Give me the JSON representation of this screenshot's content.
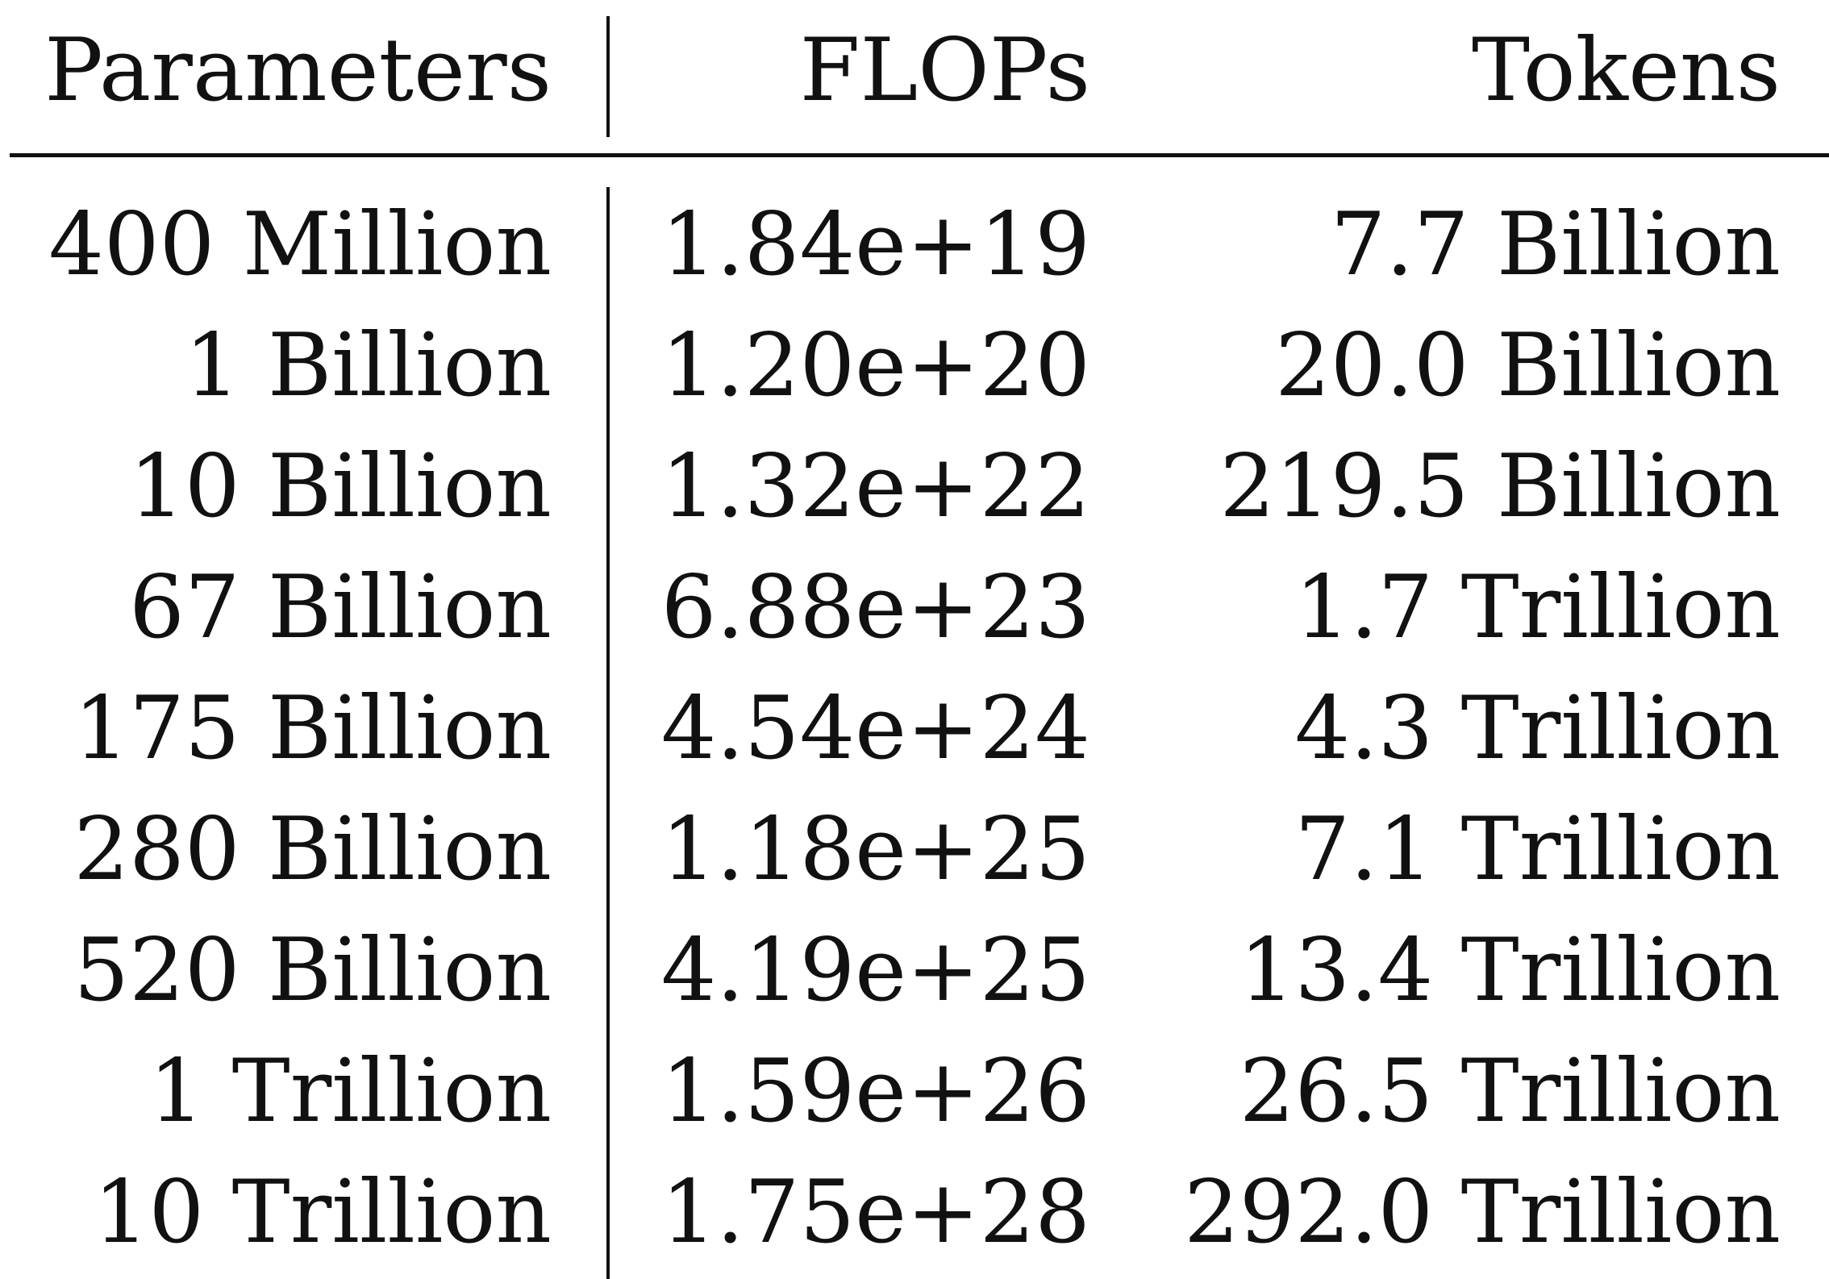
{
  "table": {
    "headers": {
      "parameters": "Parameters",
      "flops": "FLOPs",
      "tokens": "Tokens"
    },
    "rows": [
      {
        "parameters": "400 Million",
        "flops": "1.84e+19",
        "tokens": "7.7 Billion"
      },
      {
        "parameters": "1 Billion",
        "flops": "1.20e+20",
        "tokens": "20.0 Billion"
      },
      {
        "parameters": "10 Billion",
        "flops": "1.32e+22",
        "tokens": "219.5 Billion"
      },
      {
        "parameters": "67 Billion",
        "flops": "6.88e+23",
        "tokens": "1.7 Trillion"
      },
      {
        "parameters": "175 Billion",
        "flops": "4.54e+24",
        "tokens": "4.3 Trillion"
      },
      {
        "parameters": "280 Billion",
        "flops": "1.18e+25",
        "tokens": "7.1 Trillion"
      },
      {
        "parameters": "520 Billion",
        "flops": "4.19e+25",
        "tokens": "13.4 Trillion"
      },
      {
        "parameters": "1 Trillion",
        "flops": "1.59e+26",
        "tokens": "26.5 Trillion"
      },
      {
        "parameters": "10 Trillion",
        "flops": "1.75e+28",
        "tokens": "292.0 Trillion"
      }
    ]
  }
}
